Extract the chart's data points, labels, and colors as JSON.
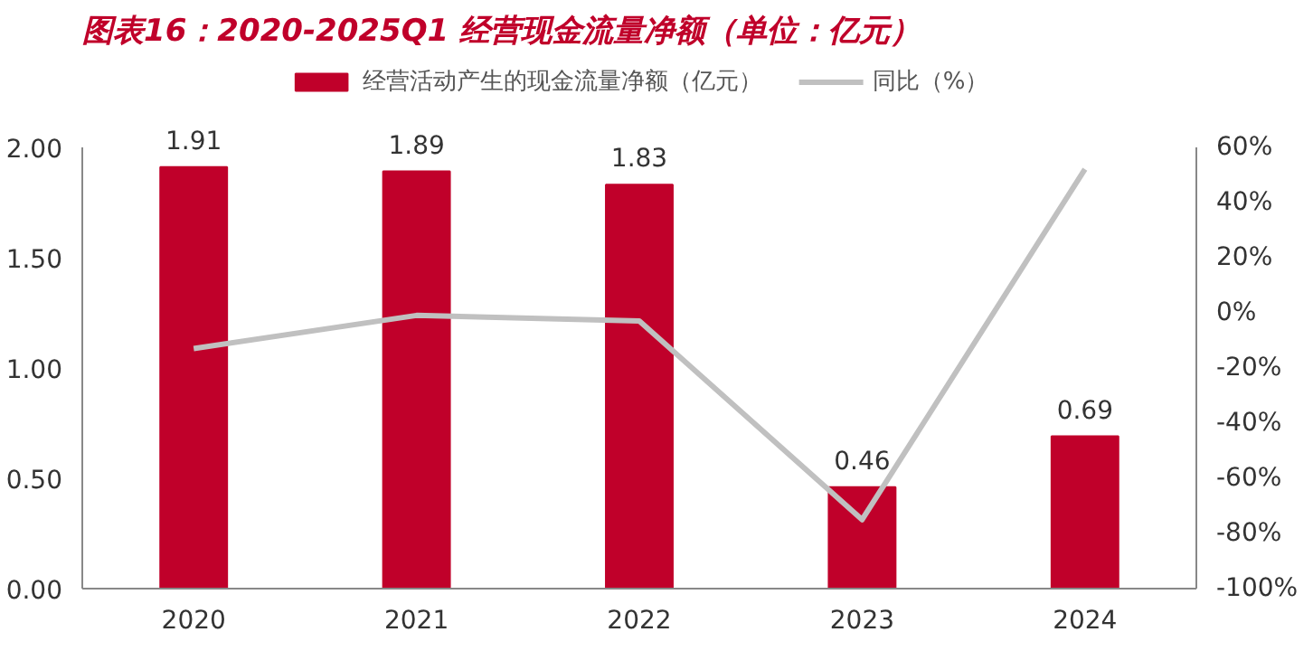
{
  "chart_data": {
    "type": "bar",
    "title": "图表16：2020-2025Q1 经营现金流量净额（单位：亿元）",
    "categories": [
      "2020",
      "2021",
      "2022",
      "2023",
      "2024"
    ],
    "series": [
      {
        "name": "经营活动产生的现金流量净额（亿元）",
        "color": "#c0002a",
        "values": [
          1.91,
          1.89,
          1.83,
          0.46,
          0.69
        ],
        "value_labels": [
          "1.91",
          "1.89",
          "1.83",
          "0.46",
          "0.69"
        ]
      },
      {
        "name": "同比（%）",
        "type": "line",
        "axis": "y2",
        "color": "#c0c0c0",
        "values": [
          -13,
          -1,
          -3,
          -75,
          52
        ]
      }
    ],
    "ylim": [
      0,
      2
    ],
    "yticks": [
      {
        "value": 0,
        "label": "0.00"
      },
      {
        "value": 0.5,
        "label": "0.50"
      },
      {
        "value": 1,
        "label": "1.00"
      },
      {
        "value": 1.5,
        "label": "1.50"
      },
      {
        "value": 2,
        "label": "2.00"
      }
    ],
    "y2lim": [
      -100,
      60
    ],
    "y2ticks": [
      {
        "value": -100,
        "label": "-100%"
      },
      {
        "value": -80,
        "label": "-80%"
      },
      {
        "value": -60,
        "label": "-60%"
      },
      {
        "value": -40,
        "label": "-40%"
      },
      {
        "value": -20,
        "label": "-20%"
      },
      {
        "value": 0,
        "label": "0%"
      },
      {
        "value": 20,
        "label": "20%"
      },
      {
        "value": 40,
        "label": "40%"
      },
      {
        "value": 60,
        "label": "60%"
      }
    ],
    "legend": "top",
    "grid": false
  }
}
